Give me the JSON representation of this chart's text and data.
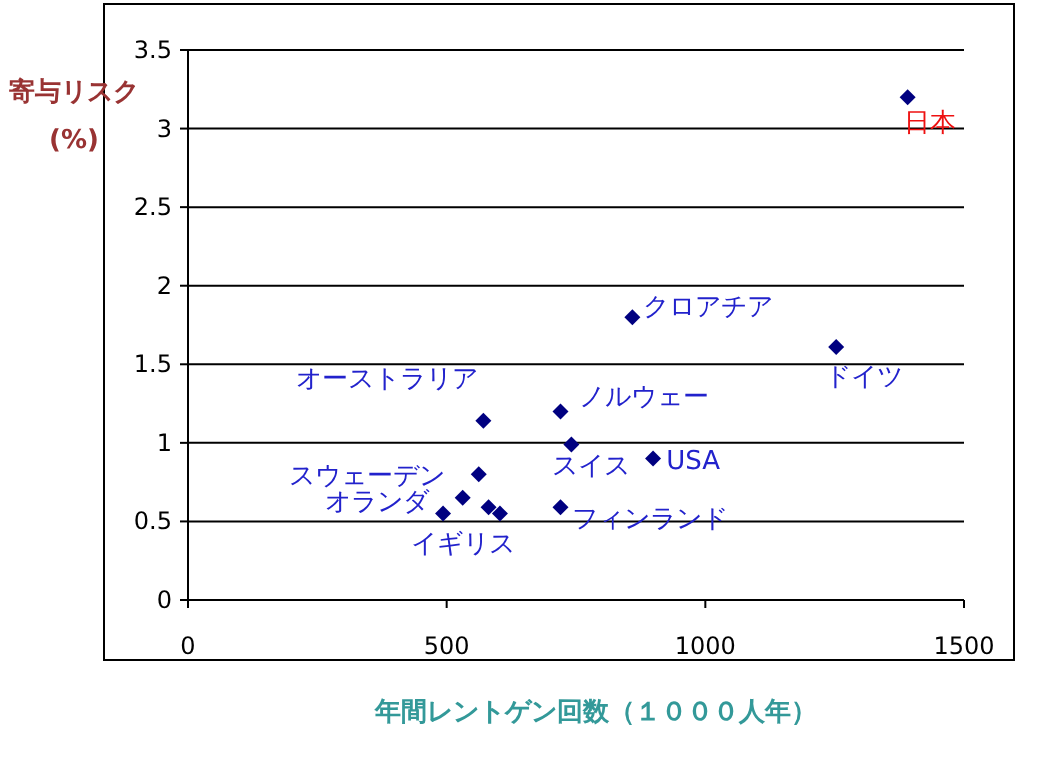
{
  "chart_data": {
    "type": "scatter",
    "xlabel": "年間レントゲン回数（１０００人年）",
    "ylabel": "寄与リスク (%)",
    "x": [
      1391,
      859,
      1253,
      571,
      720,
      741,
      899,
      562,
      531,
      493,
      581,
      603,
      720
    ],
    "values": [
      3.2,
      1.8,
      1.61,
      1.14,
      1.2,
      0.99,
      0.9,
      0.8,
      0.65,
      0.55,
      0.59,
      0.55,
      0.59
    ],
    "color": "#000080",
    "marker": "diamond",
    "grid": "y",
    "xlim": [
      0,
      1500
    ],
    "xticks": [
      0,
      500,
      1000,
      1500
    ],
    "ylim": [
      0,
      3.5
    ],
    "yticks": [
      0,
      0.5,
      1,
      1.5,
      2,
      2.5,
      3,
      3.5
    ],
    "annotations": [
      {
        "text": "日本",
        "x": 1391,
        "y": 3.2
      },
      {
        "text": "クロアチア",
        "x": 859,
        "y": 1.8
      },
      {
        "text": "ドイツ",
        "x": 1253,
        "y": 1.61
      },
      {
        "text": "オーストラリア",
        "x": 571,
        "y": 1.14
      },
      {
        "text": "ノルウェー",
        "x": 720,
        "y": 1.2
      },
      {
        "text": "スイス",
        "x": 741,
        "y": 0.99
      },
      {
        "text": "USA",
        "x": 899,
        "y": 0.9
      },
      {
        "text": "スウェーデン",
        "x": 562,
        "y": 0.8
      },
      {
        "text": "オランダ",
        "x": 531,
        "y": 0.65
      },
      {
        "text": "イギリス",
        "x": 493,
        "y": 0.55
      },
      {
        "text": "フィンランド",
        "x": 720,
        "y": 0.59
      }
    ]
  }
}
